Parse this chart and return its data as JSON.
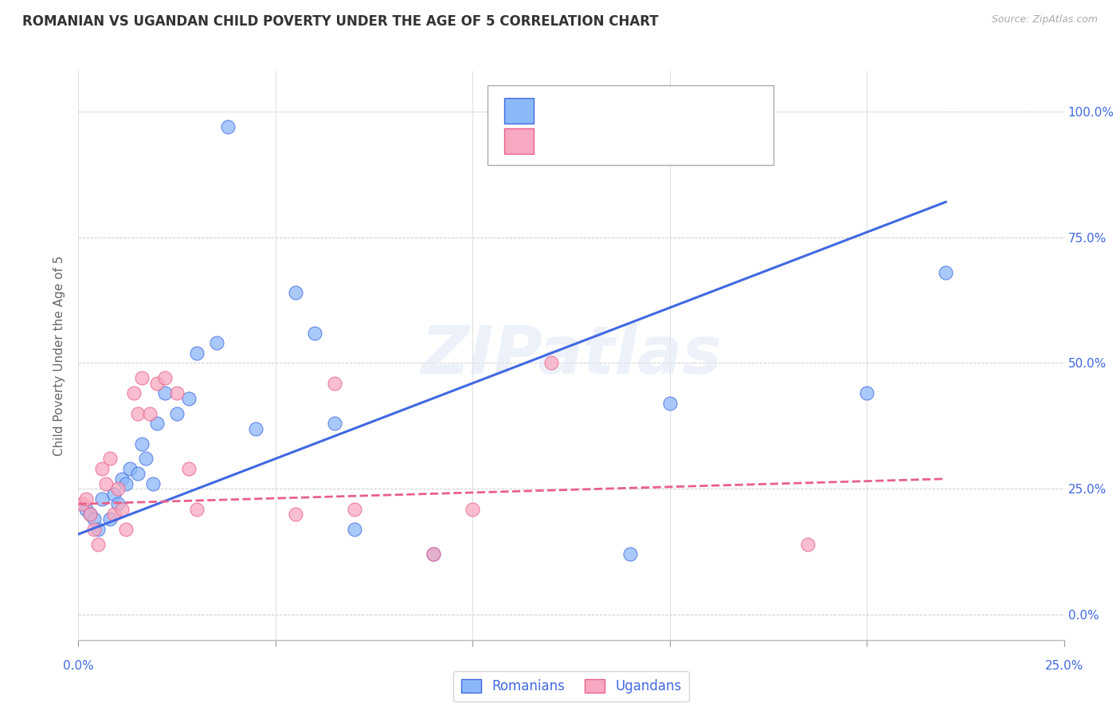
{
  "title": "ROMANIAN VS UGANDAN CHILD POVERTY UNDER THE AGE OF 5 CORRELATION CHART",
  "source": "Source: ZipAtlas.com",
  "ylabel": "Child Poverty Under the Age of 5",
  "ytick_values": [
    0,
    25,
    50,
    75,
    100
  ],
  "xlim": [
    0,
    25
  ],
  "ylim": [
    -5,
    108
  ],
  "watermark": "ZIPatlas",
  "legend_label_blue": "Romanians",
  "legend_label_pink": "Ugandans",
  "blue_color": "#8BB8F8",
  "pink_color": "#F8A8C0",
  "blue_line_color": "#4169E1",
  "pink_line_color": "#E8608A",
  "romanian_x": [
    0.2,
    0.3,
    0.4,
    0.5,
    0.6,
    0.8,
    0.9,
    1.0,
    1.1,
    1.2,
    1.3,
    1.5,
    1.6,
    1.7,
    1.9,
    2.0,
    2.2,
    2.5,
    2.8,
    3.0,
    3.5,
    4.5,
    5.5,
    6.0,
    6.5,
    7.0,
    9.0,
    14.0,
    15.0,
    20.0
  ],
  "romanian_y": [
    21,
    20,
    19,
    17,
    23,
    19,
    24,
    22,
    27,
    26,
    29,
    28,
    34,
    31,
    26,
    38,
    44,
    40,
    43,
    52,
    54,
    37,
    64,
    56,
    38,
    17,
    12,
    12,
    42,
    44
  ],
  "ugandan_x": [
    0.1,
    0.2,
    0.3,
    0.4,
    0.5,
    0.6,
    0.7,
    0.8,
    0.9,
    1.0,
    1.1,
    1.2,
    1.4,
    1.5,
    1.6,
    1.8,
    2.0,
    2.2,
    2.5,
    2.8,
    3.0,
    5.5,
    6.5,
    7.0,
    9.0,
    10.0,
    12.0,
    18.5
  ],
  "ugandan_y": [
    22,
    23,
    20,
    17,
    14,
    29,
    26,
    31,
    20,
    25,
    21,
    17,
    44,
    40,
    47,
    40,
    46,
    47,
    44,
    29,
    21,
    20,
    46,
    21,
    12,
    21,
    50,
    14
  ],
  "blue_trendline_x": [
    0,
    22.0
  ],
  "blue_trendline_y": [
    16,
    82
  ],
  "pink_trendline_x": [
    0,
    22.0
  ],
  "pink_trendline_y": [
    22,
    27
  ],
  "outlier_blue_x": 3.8,
  "outlier_blue_y": 97,
  "outlier_blue2_x": 22.0,
  "outlier_blue2_y": 68
}
